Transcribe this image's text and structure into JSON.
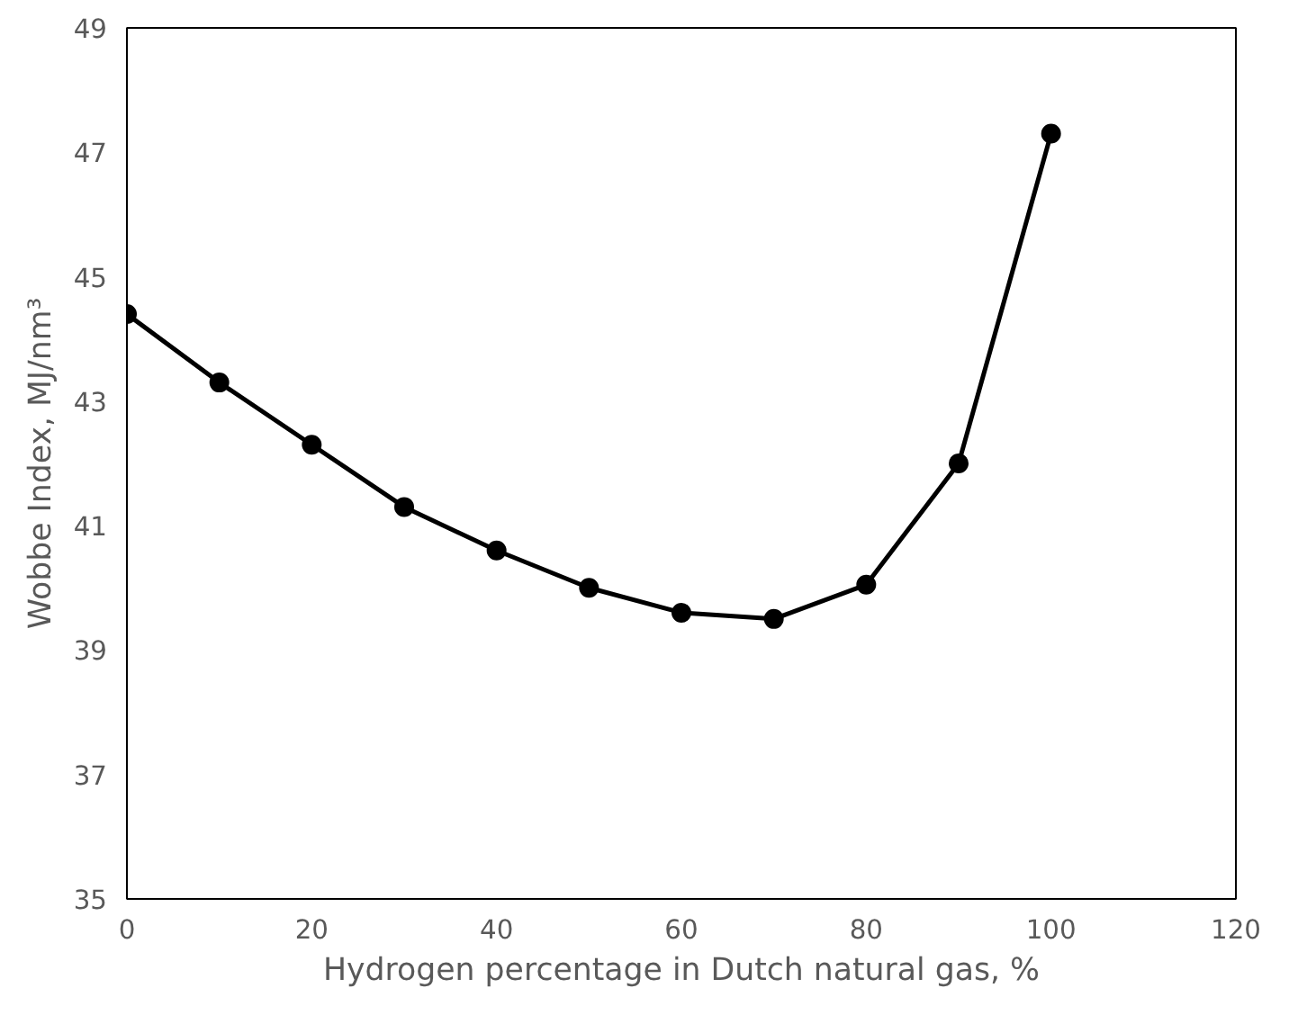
{
  "chart_data": {
    "type": "line",
    "xlabel": "Hydrogen percentage in Dutch natural gas, %",
    "ylabel": "Wobbe Index, MJ/nm³",
    "x": [
      0,
      10,
      20,
      30,
      40,
      50,
      60,
      70,
      80,
      90,
      100
    ],
    "series": [
      {
        "color": "#000000",
        "values": [
          44.4,
          43.3,
          42.3,
          41.3,
          40.6,
          40.0,
          39.6,
          39.5,
          40.05,
          42.0,
          47.3
        ]
      }
    ],
    "xlim": [
      0,
      120
    ],
    "xticks": [
      0,
      20,
      40,
      60,
      80,
      100,
      120
    ],
    "ylim": [
      35,
      49
    ],
    "yticks": [
      35,
      37,
      39,
      41,
      43,
      45,
      47,
      49
    ],
    "grid": false,
    "marker": "circle",
    "line_style": "solid"
  }
}
